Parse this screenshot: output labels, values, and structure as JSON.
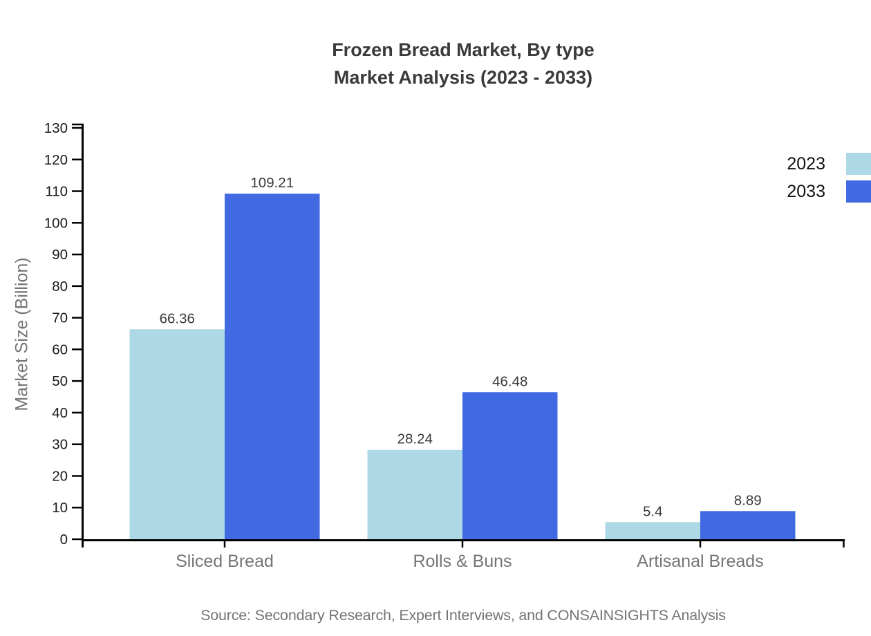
{
  "title": {
    "line1": "Frozen Bread Market, By type",
    "line2": "Market Analysis (2023 - 2033)"
  },
  "source": "Source: Secondary Research, Expert Interviews, and CONSAINSIGHTS Analysis",
  "legend": {
    "items": [
      {
        "label": "2023",
        "color": "#ADD8E6"
      },
      {
        "label": "2033",
        "color": "#4169E1"
      }
    ]
  },
  "chart_data": {
    "type": "bar",
    "title": "Frozen Bread Market, By type — Market Analysis (2023 - 2033)",
    "categories": [
      "Sliced Bread",
      "Rolls & Buns",
      "Artisanal Breads"
    ],
    "series": [
      {
        "name": "2023",
        "color": "#ADD8E6",
        "values": [
          66.36,
          28.24,
          5.4
        ],
        "labels": [
          "66.36",
          "28.24",
          "5.4"
        ]
      },
      {
        "name": "2033",
        "color": "#4169E1",
        "values": [
          109.21,
          46.48,
          8.89
        ],
        "labels": [
          "109.21",
          "46.48",
          "8.89"
        ]
      }
    ],
    "xlabel": "",
    "ylabel": "Market Size (Billion)",
    "ylim": [
      0,
      130
    ],
    "ytick_step": 10,
    "yticks": [
      0,
      10,
      20,
      30,
      40,
      50,
      60,
      70,
      80,
      90,
      100,
      110,
      120,
      130
    ],
    "grid": false,
    "legend_position": "right",
    "axis_color": "#000000",
    "tick_label_color": "#1a1a1a",
    "value_label_color": "#3a3a3a",
    "category_label_color": "#757575"
  }
}
